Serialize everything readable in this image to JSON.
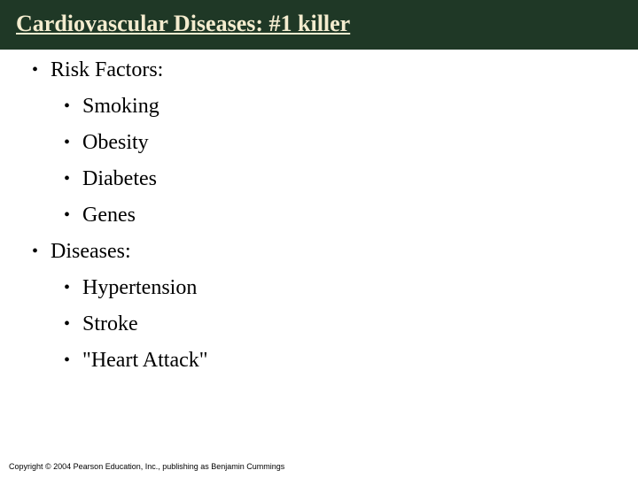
{
  "colors": {
    "title_bar_bg": "#1f3826",
    "title_text": "#f4eccf",
    "body_text": "#000000",
    "background": "#ffffff",
    "bullet": "#000000",
    "copyright_text": "#000000"
  },
  "typography": {
    "title_fontsize": 26,
    "body_fontsize": 24,
    "copyright_fontsize": 9,
    "title_font": "Georgia, serif",
    "body_font": "Georgia, serif"
  },
  "title": "Cardiovascular Diseases: #1 killer",
  "sections": [
    {
      "label": "Risk Factors:",
      "items": [
        "Smoking",
        "Obesity",
        "Diabetes",
        "Genes"
      ]
    },
    {
      "label": "Diseases:",
      "items": [
        "Hypertension",
        "Stroke",
        "\"Heart Attack\""
      ]
    }
  ],
  "copyright": "Copyright © 2004 Pearson Education, Inc., publishing as Benjamin Cummings"
}
